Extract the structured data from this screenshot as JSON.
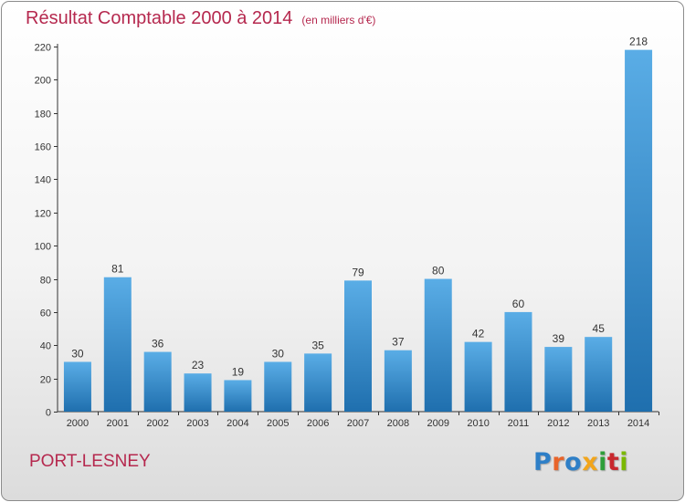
{
  "header": {
    "title": "Résultat Comptable 2000 à 2014",
    "unit": "(en milliers d'€)"
  },
  "footer": {
    "commune": "PORT-LESNEY",
    "logo_text": "Proxiti",
    "logo_colors": [
      "#2e7fc7",
      "#e8642a",
      "#2e7fc7",
      "#f2a51b",
      "#2e9e3a",
      "#c8282e",
      "#7ab800"
    ]
  },
  "colors": {
    "accent": "#b5284e",
    "bar_top": "#5aade6",
    "bar_bottom": "#1f6fae"
  },
  "chart_data": {
    "type": "bar",
    "title": "Résultat Comptable 2000 à 2014",
    "subtitle": "(en milliers d'€)",
    "categories": [
      "2000",
      "2001",
      "2002",
      "2003",
      "2004",
      "2005",
      "2006",
      "2007",
      "2008",
      "2009",
      "2010",
      "2011",
      "2012",
      "2013",
      "2014"
    ],
    "values": [
      30,
      81,
      36,
      23,
      19,
      30,
      35,
      79,
      37,
      80,
      42,
      60,
      39,
      45,
      218
    ],
    "ylim": [
      0,
      220
    ],
    "yticks": [
      0,
      20,
      40,
      60,
      80,
      100,
      120,
      140,
      160,
      180,
      200,
      220
    ],
    "grid": false,
    "data_labels": true
  }
}
